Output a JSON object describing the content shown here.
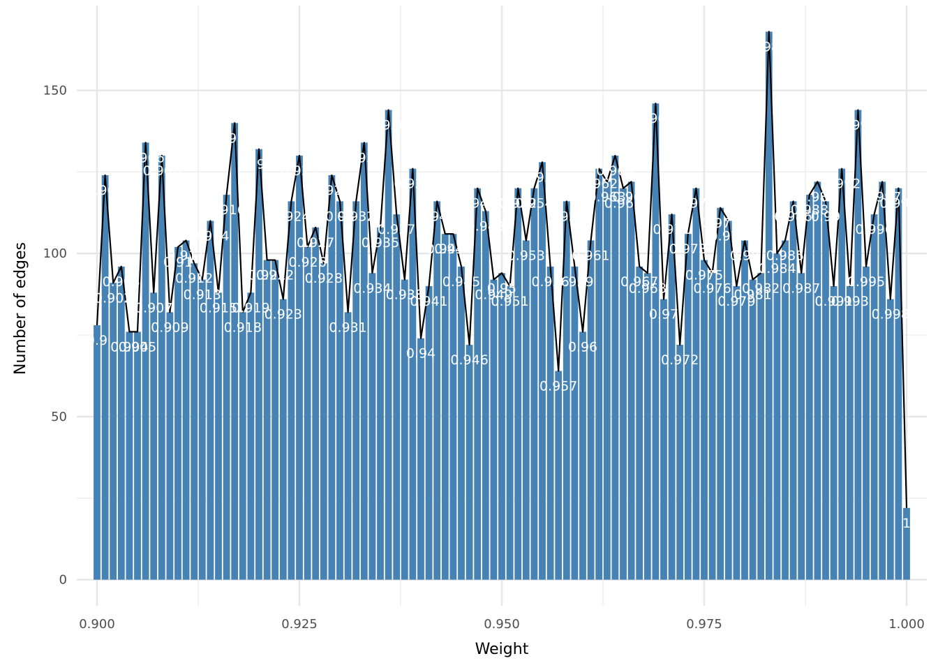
{
  "chart_data": {
    "type": "bar",
    "title": "",
    "xlabel": "Weight",
    "ylabel": "Number of edges",
    "xlim": [
      0.8975,
      1.0025
    ],
    "ylim": [
      -8,
      176
    ],
    "x_ticks": [
      {
        "value": 0.9,
        "label": "0.900"
      },
      {
        "value": 0.925,
        "label": "0.925"
      },
      {
        "value": 0.95,
        "label": "0.950"
      },
      {
        "value": 0.975,
        "label": "0.975"
      },
      {
        "value": 1.0,
        "label": "1.000"
      }
    ],
    "y_ticks": [
      {
        "value": 0,
        "label": "0"
      },
      {
        "value": 50,
        "label": "50"
      },
      {
        "value": 100,
        "label": "100"
      },
      {
        "value": 150,
        "label": "150"
      }
    ],
    "grid": true,
    "bar_color": "#4682B4",
    "line_color": "#000000",
    "bin_width": 0.001,
    "x": [
      0.9,
      0.901,
      0.902,
      0.903,
      0.904,
      0.905,
      0.906,
      0.907,
      0.908,
      0.909,
      0.91,
      0.911,
      0.912,
      0.913,
      0.914,
      0.915,
      0.916,
      0.917,
      0.918,
      0.919,
      0.92,
      0.921,
      0.922,
      0.923,
      0.924,
      0.925,
      0.926,
      0.927,
      0.928,
      0.929,
      0.93,
      0.931,
      0.932,
      0.933,
      0.934,
      0.935,
      0.936,
      0.937,
      0.938,
      0.939,
      0.94,
      0.941,
      0.942,
      0.943,
      0.944,
      0.945,
      0.946,
      0.947,
      0.948,
      0.949,
      0.95,
      0.951,
      0.952,
      0.953,
      0.954,
      0.955,
      0.956,
      0.957,
      0.958,
      0.959,
      0.96,
      0.961,
      0.962,
      0.963,
      0.964,
      0.965,
      0.966,
      0.967,
      0.968,
      0.969,
      0.97,
      0.971,
      0.972,
      0.973,
      0.974,
      0.975,
      0.976,
      0.977,
      0.978,
      0.979,
      0.98,
      0.981,
      0.982,
      0.983,
      0.984,
      0.985,
      0.986,
      0.987,
      0.988,
      0.989,
      0.99,
      0.991,
      0.992,
      0.993,
      0.994,
      0.995,
      0.996,
      0.997,
      0.998,
      0.999,
      1.0
    ],
    "values": [
      78,
      124,
      91,
      96,
      76,
      76,
      134,
      88,
      130,
      82,
      102,
      104,
      97,
      92,
      110,
      88,
      118,
      140,
      82,
      88,
      132,
      98,
      98,
      86,
      116,
      130,
      102,
      108,
      97,
      124,
      116,
      82,
      116,
      134,
      94,
      108,
      144,
      112,
      92,
      126,
      74,
      90,
      116,
      106,
      106,
      96,
      72,
      120,
      113,
      92,
      94,
      90,
      120,
      104,
      120,
      128,
      96,
      64,
      116,
      96,
      76,
      104,
      126,
      122,
      130,
      120,
      122,
      96,
      94,
      146,
      86,
      112,
      72,
      106,
      120,
      98,
      94,
      114,
      110,
      90,
      104,
      92,
      94,
      168,
      100,
      104,
      116,
      94,
      118,
      122,
      116,
      90,
      126,
      90,
      144,
      96,
      112,
      122,
      86,
      120,
      22
    ],
    "labels": [
      "0.9",
      "0.901",
      "0.902",
      "0.903",
      "0.904",
      "0.905",
      "0.906",
      "0.907",
      "0.908",
      "0.909",
      "0.91",
      "0.911",
      "0.912",
      "0.913",
      "0.914",
      "0.915",
      "0.916",
      "0.917",
      "0.918",
      "0.919",
      "0.92",
      "0.921",
      "0.922",
      "0.923",
      "0.924",
      "0.925",
      "0.926",
      "0.927",
      "0.928",
      "0.929",
      "0.93",
      "0.931",
      "0.932",
      "0.933",
      "0.934",
      "0.935",
      "0.936",
      "0.937",
      "0.938",
      "0.939",
      "0.94",
      "0.941",
      "0.942",
      "0.943",
      "0.944",
      "0.945",
      "0.946",
      "0.947",
      "0.948",
      "0.949",
      "0.95",
      "0.951",
      "0.952",
      "0.953",
      "0.954",
      "0.955",
      "0.956",
      "0.957",
      "0.958",
      "0.959",
      "0.96",
      "0.961",
      "0.962",
      "0.963",
      "0.964",
      "0.965",
      "0.966",
      "0.967",
      "0.968",
      "0.969",
      "0.97",
      "0.971",
      "0.972",
      "0.973",
      "0.974",
      "0.975",
      "0.976",
      "0.977",
      "0.978",
      "0.979",
      "0.98",
      "0.981",
      "0.982",
      "0.983",
      "0.984",
      "0.985",
      "0.986",
      "0.987",
      "0.988",
      "0.989",
      "0.99",
      "0.991",
      "0.992",
      "0.993",
      "0.994",
      "0.995",
      "0.996",
      "0.997",
      "0.998",
      "0.999",
      "1"
    ]
  }
}
